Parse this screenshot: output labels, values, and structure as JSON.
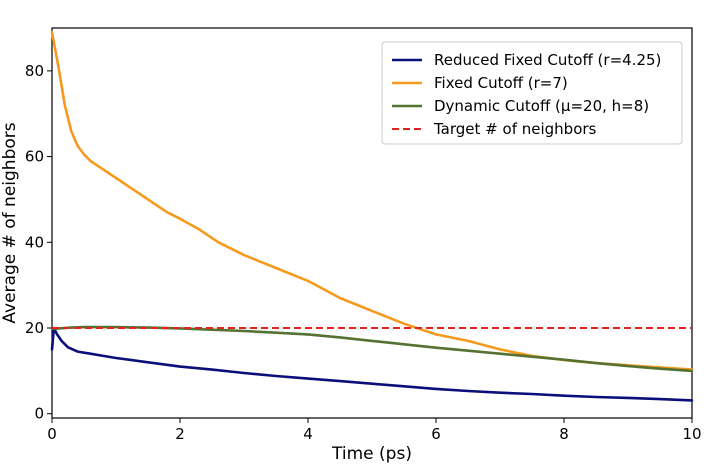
{
  "chart_data": {
    "type": "line",
    "title": "",
    "xlabel": "Time (ps)",
    "ylabel": "Average # of neighbors",
    "xlim": [
      0,
      10
    ],
    "ylim": [
      -1,
      90
    ],
    "x_ticks": [
      0,
      2,
      4,
      6,
      8,
      10
    ],
    "x_tick_labels": [
      "0",
      "2",
      "4",
      "6",
      "8",
      "10"
    ],
    "y_ticks": [
      0,
      20,
      40,
      60,
      80
    ],
    "y_tick_labels": [
      "0",
      "20",
      "40",
      "60",
      "80"
    ],
    "legend_position": "top-right",
    "series": [
      {
        "name": "Reduced Fixed Cutoff (r=4.25)",
        "color": "#0b0f7a",
        "style": "solid",
        "x": [
          0,
          0.03,
          0.08,
          0.15,
          0.25,
          0.4,
          0.6,
          0.8,
          1.0,
          1.5,
          2.0,
          2.5,
          3.0,
          3.5,
          4.0,
          4.5,
          5.0,
          5.5,
          6.0,
          6.5,
          7.0,
          7.5,
          8.0,
          8.5,
          9.0,
          9.5,
          10.0
        ],
        "values": [
          15,
          20,
          18.5,
          17,
          15.5,
          14.5,
          14,
          13.5,
          13,
          12,
          11,
          10.3,
          9.5,
          8.8,
          8.2,
          7.6,
          7,
          6.4,
          5.8,
          5.3,
          4.9,
          4.6,
          4.2,
          3.9,
          3.7,
          3.4,
          3.1
        ]
      },
      {
        "name": "Fixed Cutoff (r=7)",
        "color": "#f59a1d",
        "style": "solid",
        "x": [
          0,
          0.05,
          0.1,
          0.2,
          0.3,
          0.4,
          0.5,
          0.6,
          0.8,
          1.0,
          1.2,
          1.5,
          1.8,
          2.0,
          2.3,
          2.6,
          3.0,
          3.5,
          4.0,
          4.5,
          5.0,
          5.5,
          6.0,
          6.5,
          7.0,
          7.5,
          8.0,
          8.5,
          9.0,
          9.5,
          10.0
        ],
        "values": [
          89,
          85,
          81,
          72,
          66,
          62.5,
          60.5,
          59,
          57,
          55,
          53,
          50,
          47,
          45.5,
          43,
          40,
          37,
          34,
          31,
          27,
          24,
          21,
          18.5,
          17,
          15,
          13.5,
          12.5,
          11.8,
          11.3,
          10.8,
          10.3
        ]
      },
      {
        "name": "Dynamic Cutoff (μ=20, h=8)",
        "color": "#567232",
        "style": "solid",
        "x": [
          0,
          0.1,
          0.3,
          0.5,
          1.0,
          1.5,
          2.0,
          2.5,
          3.0,
          3.5,
          4.0,
          4.5,
          5.0,
          5.5,
          6.0,
          6.5,
          7.0,
          7.5,
          8.0,
          8.5,
          9.0,
          9.5,
          10.0
        ],
        "values": [
          19.8,
          19.9,
          20.1,
          20.2,
          20.2,
          20.1,
          19.9,
          19.6,
          19.3,
          18.9,
          18.5,
          17.8,
          17,
          16.2,
          15.4,
          14.7,
          14,
          13.3,
          12.6,
          11.8,
          11.1,
          10.5,
          10
        ]
      },
      {
        "name": "Target # of neighbors",
        "color": "#e3241c",
        "style": "dashed",
        "x": [
          0,
          10
        ],
        "values": [
          20,
          20
        ]
      }
    ]
  }
}
